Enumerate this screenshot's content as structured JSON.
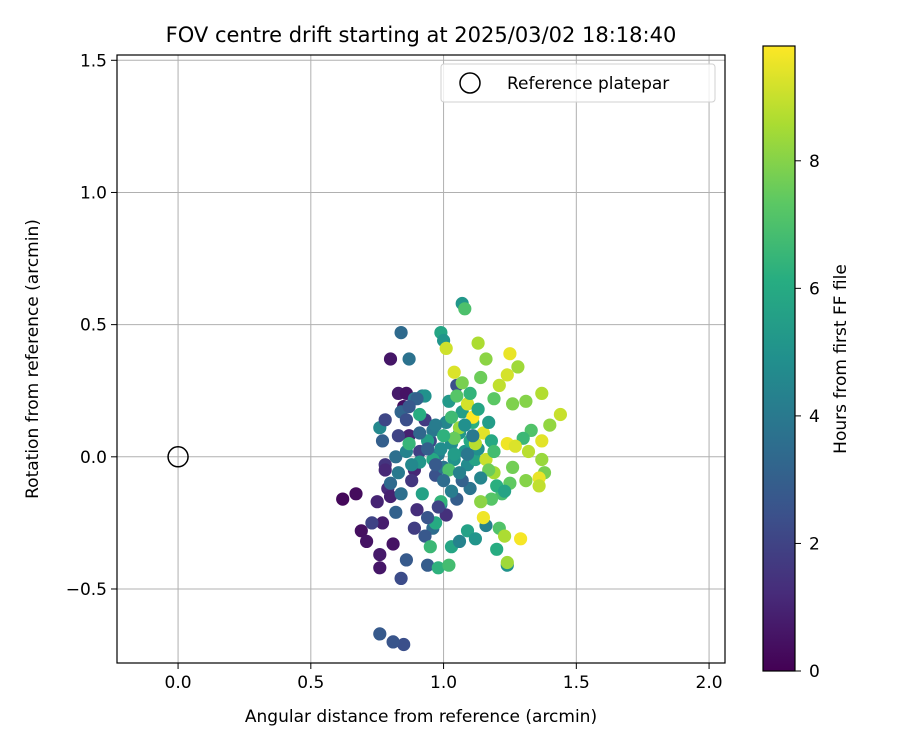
{
  "chart_data": {
    "type": "scatter",
    "title": "FOV centre drift starting at 2025/03/02 18:18:40",
    "xlabel": "Angular distance from reference (arcmin)",
    "ylabel": "Rotation from reference (arcmin)",
    "xlim": [
      -0.23,
      2.06
    ],
    "ylim": [
      -0.78,
      1.52
    ],
    "xticks": [
      0.0,
      0.5,
      1.0,
      1.5,
      2.0
    ],
    "xtick_labels": [
      "0.0",
      "0.5",
      "1.0",
      "1.5",
      "2.0"
    ],
    "yticks": [
      -0.5,
      0.0,
      0.5,
      1.0,
      1.5
    ],
    "ytick_labels": [
      "−0.5",
      "0.0",
      "0.5",
      "1.0",
      "1.5"
    ],
    "grid": true,
    "legend": {
      "placement": "top-right",
      "entries": [
        "Reference platepar"
      ]
    },
    "colorbar": {
      "label": "Hours from first FF file",
      "colormap": "viridis",
      "range": [
        0,
        9.8
      ],
      "ticks": [
        0,
        2,
        4,
        6,
        8
      ],
      "tick_labels": [
        "0",
        "2",
        "4",
        "6",
        "8"
      ]
    },
    "reference_point": {
      "x": 0.0,
      "y": 0.0
    },
    "points": [
      [
        0.62,
        -0.16,
        0.2
      ],
      [
        0.67,
        -0.14,
        0.3
      ],
      [
        0.69,
        -0.28,
        0.4
      ],
      [
        0.71,
        -0.32,
        0.5
      ],
      [
        0.76,
        -0.37,
        0.7
      ],
      [
        0.76,
        -0.42,
        0.6
      ],
      [
        0.77,
        -0.25,
        0.8
      ],
      [
        0.73,
        -0.25,
        2.0
      ],
      [
        0.75,
        -0.17,
        1.0
      ],
      [
        0.79,
        -0.12,
        1.2
      ],
      [
        0.81,
        -0.33,
        0.5
      ],
      [
        0.78,
        -0.03,
        1.5
      ],
      [
        0.8,
        0.37,
        0.6
      ],
      [
        0.83,
        0.24,
        0.7
      ],
      [
        0.85,
        0.19,
        0.4
      ],
      [
        0.86,
        0.24,
        0.5
      ],
      [
        0.87,
        0.08,
        0.9
      ],
      [
        0.89,
        -0.05,
        1.1
      ],
      [
        0.9,
        -0.2,
        1.3
      ],
      [
        0.88,
        -0.09,
        1.6
      ],
      [
        0.91,
        0.02,
        1.9
      ],
      [
        0.93,
        0.14,
        1.7
      ],
      [
        0.95,
        0.06,
        2.2
      ],
      [
        0.97,
        -0.07,
        2.5
      ],
      [
        0.84,
        -0.46,
        2.3
      ],
      [
        0.85,
        -0.71,
        2.4
      ],
      [
        0.81,
        -0.7,
        2.6
      ],
      [
        0.76,
        -0.67,
        2.8
      ],
      [
        0.94,
        -0.41,
        2.9
      ],
      [
        0.86,
        -0.39,
        2.8
      ],
      [
        0.84,
        0.47,
        3.4
      ],
      [
        0.87,
        0.37,
        3.7
      ],
      [
        0.76,
        0.11,
        4.6
      ],
      [
        0.77,
        0.06,
        3.0
      ],
      [
        0.78,
        0.14,
        2.1
      ],
      [
        0.8,
        -0.1,
        3.4
      ],
      [
        0.82,
        0.0,
        3.6
      ],
      [
        0.84,
        0.17,
        3.2
      ],
      [
        0.89,
        0.22,
        3.9
      ],
      [
        0.92,
        0.23,
        4.3
      ],
      [
        0.96,
        0.1,
        3.9
      ],
      [
        0.98,
        0.01,
        4.2
      ],
      [
        1.0,
        -0.04,
        3.8
      ],
      [
        1.01,
        0.13,
        4.5
      ],
      [
        1.03,
        0.05,
        4.8
      ],
      [
        1.04,
        -0.01,
        5.0
      ],
      [
        1.05,
        0.27,
        2.4
      ],
      [
        1.06,
        0.09,
        5.2
      ],
      [
        1.07,
        0.17,
        5.5
      ],
      [
        1.08,
        0.02,
        5.1
      ],
      [
        1.09,
        -0.03,
        4.7
      ],
      [
        1.1,
        0.06,
        5.9
      ],
      [
        1.11,
        0.13,
        6.2
      ],
      [
        1.12,
        -0.01,
        5.7
      ],
      [
        1.13,
        0.03,
        4.9
      ],
      [
        1.02,
        0.21,
        5.3
      ],
      [
        0.99,
        -0.18,
        4.1
      ],
      [
        0.96,
        -0.27,
        3.5
      ],
      [
        0.93,
        -0.3,
        2.7
      ],
      [
        1.03,
        -0.34,
        5.8
      ],
      [
        1.06,
        -0.32,
        4.4
      ],
      [
        1.09,
        -0.28,
        5.6
      ],
      [
        1.12,
        -0.31,
        5.1
      ],
      [
        1.16,
        -0.26,
        4.3
      ],
      [
        1.2,
        -0.35,
        6.1
      ],
      [
        1.24,
        -0.41,
        5.0
      ],
      [
        1.07,
        0.58,
        5.2
      ],
      [
        1.08,
        0.56,
        7.0
      ],
      [
        0.99,
        0.47,
        5.8
      ],
      [
        1.0,
        0.44,
        5.1
      ],
      [
        1.01,
        0.41,
        9.1
      ],
      [
        1.04,
        0.32,
        9.3
      ],
      [
        1.13,
        0.43,
        8.6
      ],
      [
        1.16,
        0.37,
        8.1
      ],
      [
        1.14,
        0.3,
        7.6
      ],
      [
        1.19,
        0.22,
        7.3
      ],
      [
        1.21,
        0.27,
        8.9
      ],
      [
        1.24,
        0.31,
        9.2
      ],
      [
        1.25,
        0.39,
        9.5
      ],
      [
        1.28,
        0.34,
        8.4
      ],
      [
        1.26,
        0.2,
        7.9
      ],
      [
        1.31,
        0.21,
        8.0
      ],
      [
        1.37,
        0.24,
        8.7
      ],
      [
        1.44,
        0.16,
        9.0
      ],
      [
        1.4,
        0.12,
        8.2
      ],
      [
        1.33,
        0.1,
        7.1
      ],
      [
        1.3,
        0.07,
        6.6
      ],
      [
        1.37,
        0.06,
        9.4
      ],
      [
        1.32,
        0.02,
        8.8
      ],
      [
        1.24,
        0.05,
        9.6
      ],
      [
        1.27,
        0.04,
        9.3
      ],
      [
        1.26,
        -0.04,
        7.7
      ],
      [
        1.37,
        -0.01,
        8.3
      ],
      [
        1.38,
        -0.06,
        7.8
      ],
      [
        1.36,
        -0.08,
        9.5
      ],
      [
        1.36,
        -0.11,
        8.9
      ],
      [
        1.31,
        -0.09,
        8.0
      ],
      [
        1.25,
        -0.1,
        7.4
      ],
      [
        1.22,
        -0.14,
        6.9
      ],
      [
        1.18,
        -0.16,
        7.2
      ],
      [
        1.14,
        -0.17,
        8.1
      ],
      [
        1.15,
        -0.23,
        9.6
      ],
      [
        1.21,
        -0.27,
        7.1
      ],
      [
        1.23,
        -0.3,
        8.6
      ],
      [
        1.29,
        -0.31,
        9.7
      ],
      [
        1.24,
        -0.4,
        8.4
      ],
      [
        1.19,
        -0.06,
        8.5
      ],
      [
        1.16,
        -0.01,
        9.0
      ],
      [
        1.12,
        0.05,
        8.8
      ],
      [
        1.15,
        0.09,
        9.4
      ],
      [
        1.11,
        0.15,
        9.8
      ],
      [
        1.09,
        0.2,
        9.2
      ],
      [
        1.06,
        0.11,
        8.3
      ],
      [
        1.04,
        0.07,
        7.5
      ],
      [
        1.02,
        -0.05,
        7.0
      ],
      [
        0.99,
        -0.17,
        6.4
      ],
      [
        0.97,
        -0.25,
        6.0
      ],
      [
        0.95,
        -0.34,
        6.6
      ],
      [
        0.98,
        -0.42,
        6.3
      ],
      [
        1.02,
        -0.41,
        6.8
      ],
      [
        0.92,
        -0.14,
        5.6
      ],
      [
        0.91,
        -0.02,
        5.2
      ],
      [
        0.88,
        -0.03,
        4.6
      ],
      [
        0.86,
        0.02,
        4.4
      ],
      [
        0.83,
        -0.06,
        4.0
      ],
      [
        0.87,
        0.05,
        6.5
      ],
      [
        0.91,
        0.16,
        6.1
      ],
      [
        0.94,
        0.06,
        5.5
      ],
      [
        0.96,
        -0.01,
        5.9
      ],
      [
        1.0,
        0.08,
        6.3
      ],
      [
        1.03,
        0.15,
        6.7
      ],
      [
        1.05,
        0.23,
        7.2
      ],
      [
        1.07,
        0.28,
        7.8
      ],
      [
        1.1,
        0.24,
        6.4
      ],
      [
        1.13,
        0.18,
        5.8
      ],
      [
        1.17,
        0.13,
        5.4
      ],
      [
        1.18,
        0.06,
        5.9
      ],
      [
        1.19,
        0.02,
        6.8
      ],
      [
        1.17,
        -0.05,
        7.6
      ],
      [
        1.2,
        -0.11,
        6.2
      ],
      [
        1.23,
        -0.13,
        5.7
      ],
      [
        1.14,
        -0.08,
        4.5
      ],
      [
        1.1,
        -0.12,
        3.8
      ],
      [
        1.07,
        -0.09,
        3.1
      ],
      [
        1.05,
        -0.16,
        2.9
      ],
      [
        1.01,
        -0.22,
        1.4
      ],
      [
        0.98,
        -0.19,
        2.0
      ],
      [
        0.94,
        -0.23,
        2.6
      ],
      [
        0.89,
        -0.27,
        1.8
      ],
      [
        0.82,
        -0.21,
        3.1
      ],
      [
        0.8,
        -0.15,
        0.9
      ],
      [
        0.78,
        -0.05,
        1.1
      ],
      [
        0.83,
        0.08,
        2.0
      ],
      [
        0.86,
        0.14,
        2.4
      ],
      [
        0.91,
        0.09,
        3.3
      ],
      [
        0.94,
        0.03,
        3.0
      ],
      [
        0.97,
        -0.03,
        2.8
      ],
      [
        1.0,
        -0.09,
        3.5
      ],
      [
        1.03,
        -0.13,
        4.1
      ],
      [
        1.06,
        -0.06,
        4.3
      ],
      [
        1.09,
        0.01,
        3.9
      ],
      [
        1.11,
        0.08,
        4.0
      ],
      [
        1.08,
        0.12,
        4.9
      ],
      [
        1.04,
        0.01,
        5.4
      ],
      [
        0.99,
        0.03,
        4.8
      ],
      [
        0.97,
        0.12,
        4.1
      ],
      [
        0.93,
        0.23,
        5.0
      ],
      [
        0.9,
        0.22,
        3.1
      ],
      [
        0.87,
        0.19,
        2.7
      ],
      [
        0.84,
        -0.14,
        3.6
      ]
    ]
  }
}
